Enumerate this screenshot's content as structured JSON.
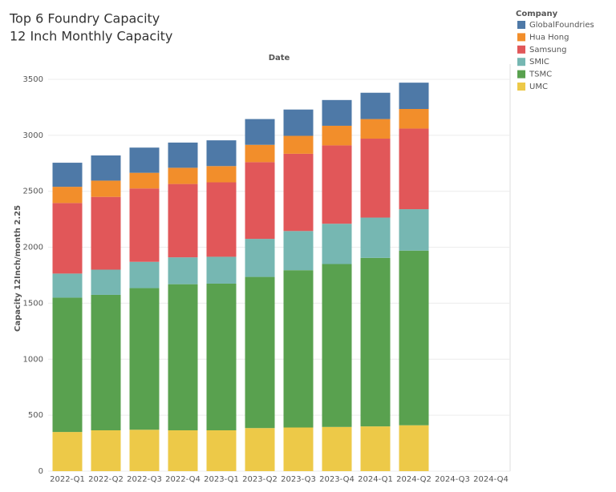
{
  "chart_data": {
    "type": "stacked-bar",
    "title": "Top 6 Foundry Capacity",
    "subtitle": "12 Inch Monthly Capacity",
    "x_header": "Date",
    "y_label": "Capacity 12Inch/month 2.25",
    "legend_title": "Company",
    "categories": [
      "2022-Q1",
      "2022-Q2",
      "2022-Q3",
      "2022-Q4",
      "2023-Q1",
      "2023-Q2",
      "2023-Q3",
      "2023-Q4",
      "2024-Q1",
      "2024-Q2",
      "2024-Q3",
      "2024-Q4"
    ],
    "series": [
      {
        "name": "GlobalFoundries",
        "color": "#4e79a7",
        "values": [
          215,
          225,
          225,
          225,
          230,
          230,
          235,
          230,
          235,
          235,
          null,
          null
        ]
      },
      {
        "name": "Hua Hong",
        "color": "#f28e2b",
        "values": [
          145,
          145,
          140,
          145,
          145,
          155,
          160,
          175,
          175,
          175,
          null,
          null
        ]
      },
      {
        "name": "Samsung",
        "color": "#e15759",
        "values": [
          630,
          650,
          655,
          655,
          665,
          685,
          690,
          700,
          705,
          720,
          null,
          null
        ]
      },
      {
        "name": "SMIC",
        "color": "#76b7b2",
        "values": [
          215,
          225,
          235,
          240,
          240,
          340,
          350,
          360,
          360,
          370,
          null,
          null
        ]
      },
      {
        "name": "TSMC",
        "color": "#59a14f",
        "values": [
          1200,
          1210,
          1265,
          1305,
          1310,
          1350,
          1405,
          1455,
          1505,
          1560,
          null,
          null
        ]
      },
      {
        "name": "UMC",
        "color": "#edc948",
        "values": [
          350,
          365,
          370,
          365,
          365,
          385,
          390,
          395,
          400,
          410,
          null,
          null
        ]
      }
    ],
    "ylim": [
      0,
      3600
    ],
    "yticks": [
      0,
      500,
      1000,
      1500,
      2000,
      2500,
      3000,
      3500
    ],
    "grid": true
  }
}
